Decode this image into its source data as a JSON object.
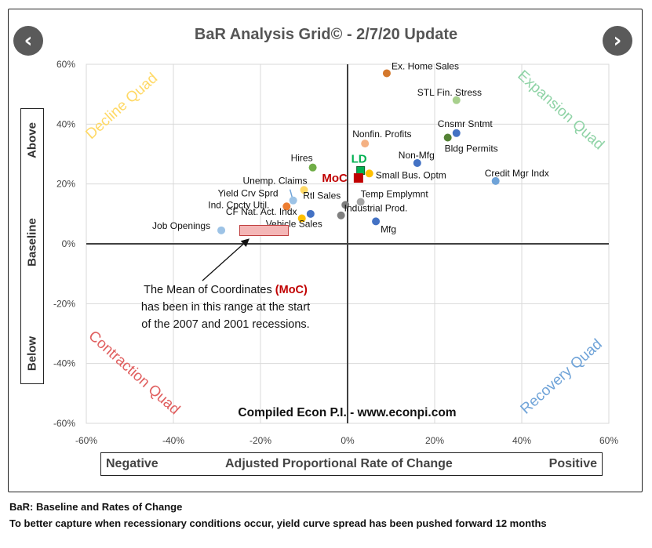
{
  "nav": {
    "prev_symbol": "‹",
    "next_symbol": "›"
  },
  "chart_data": {
    "type": "scatter",
    "title": "BaR Analysis Grid© - 2/7/20 Update",
    "xlabel": "Adjusted Proportional Rate of Change",
    "xlabel_left": "Negative",
    "xlabel_right": "Positive",
    "ylabel_top": "Above",
    "ylabel_mid": "Baseline",
    "ylabel_bottom": "Below",
    "xlim": [
      -60,
      60
    ],
    "ylim": [
      -60,
      60
    ],
    "x_ticks": [
      "-60%",
      "-40%",
      "-20%",
      "0%",
      "20%",
      "40%",
      "60%"
    ],
    "y_ticks": [
      "60%",
      "40%",
      "20%",
      "0%",
      "-20%",
      "-40%",
      "-60%"
    ],
    "x_tick_values": [
      -60,
      -40,
      -20,
      0,
      20,
      40,
      60
    ],
    "y_tick_values": [
      60,
      40,
      20,
      0,
      -20,
      -40,
      -60
    ],
    "quadrants": {
      "decline": "Decline Quad",
      "expansion": "Expansion Quad",
      "contraction": "Contraction Quad",
      "recovery": "Recovery Quad"
    },
    "points": [
      {
        "label": "Ex. Home Sales",
        "x": 9,
        "y": 57,
        "color": "#d4782c"
      },
      {
        "label": "STL Fin. Stress",
        "x": 25,
        "y": 48,
        "color": "#a8d08d"
      },
      {
        "label": "Cnsmr Sntmt",
        "x": 25,
        "y": 37,
        "color": "#4472c4"
      },
      {
        "label": "Bldg Permits",
        "x": 23,
        "y": 35.5,
        "color": "#548235"
      },
      {
        "label": "Credit Mgr Indx",
        "x": 34,
        "y": 21,
        "color": "#6fa3d8"
      },
      {
        "label": "Nonfin. Profits",
        "x": 4,
        "y": 33.5,
        "color": "#f4b183"
      },
      {
        "label": "Non-Mfg",
        "x": 16,
        "y": 27,
        "color": "#4472c4"
      },
      {
        "label": "Small Bus. Optm",
        "x": 5,
        "y": 23.5,
        "color": "#ffc000"
      },
      {
        "label": "Hires",
        "x": -8,
        "y": 25.5,
        "color": "#70ad47"
      },
      {
        "label": "Unemp. Claims",
        "x": -10,
        "y": 18,
        "color": "#ffd966"
      },
      {
        "label": "Yield Crv Sprd",
        "x": -12.5,
        "y": 14.5,
        "color": "#9dc3e6"
      },
      {
        "label": "Ind. Cpcty Util.",
        "x": -14,
        "y": 12.5,
        "color": "#ed7d31"
      },
      {
        "label": "Rtl Sales",
        "x": -0.5,
        "y": 13,
        "color": "#7f7f7f"
      },
      {
        "label": "Temp Emplymnt",
        "x": 3,
        "y": 14,
        "color": "#a5a5a5"
      },
      {
        "label": "CF Nat. Act. Indx",
        "x": -8.5,
        "y": 10,
        "color": "#4472c4"
      },
      {
        "label": "Industrial Prod.",
        "x": -1.5,
        "y": 9.5,
        "color": "#7f7f7f"
      },
      {
        "label": "Vehicle Sales",
        "x": -10.5,
        "y": 8.5,
        "color": "#ffc000"
      },
      {
        "label": "Job Openings",
        "x": -29,
        "y": 4.5,
        "color": "#9dc3e6"
      },
      {
        "label": "Mfg",
        "x": 6.5,
        "y": 7.5,
        "color": "#4472c4"
      }
    ],
    "ld": {
      "label": "LD",
      "x": 3,
      "y": 24.5,
      "color": "#00b050"
    },
    "moc": {
      "label": "MoC",
      "x": 2.5,
      "y": 22,
      "color": "#c00000"
    },
    "moc_range": {
      "x_from": -23,
      "x_to": -12,
      "y_from": 2.5,
      "y_to": 5.5
    },
    "annotation_lines": [
      "The Mean of Coordinates ",
      "(MoC)",
      "has been in this range at the start",
      "of the 2007 and 2001 recessions."
    ],
    "credit": "Compiled Econ P.I. - www.econpi.com"
  },
  "footnotes": [
    "BaR: Baseline and Rates of Change",
    "To better capture when recessionary conditions occur, yield curve spread has been pushed forward 12 months"
  ]
}
